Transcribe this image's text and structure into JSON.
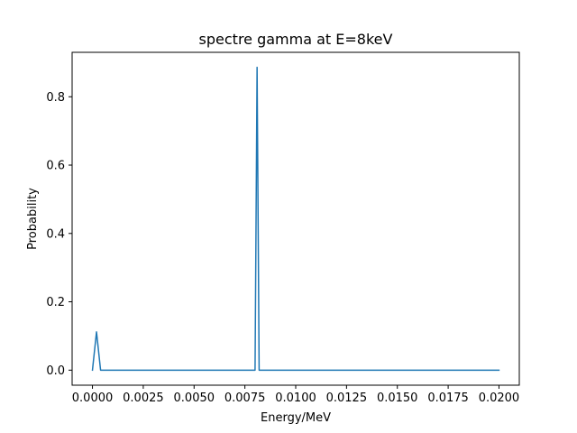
{
  "chart_data": {
    "type": "line",
    "title": "spectre gamma at E=8keV",
    "xlabel": "Energy/MeV",
    "ylabel": "Probability",
    "xlim": [
      -0.001,
      0.021
    ],
    "ylim": [
      -0.044,
      0.93
    ],
    "xticks": [
      0.0,
      0.0025,
      0.005,
      0.0075,
      0.01,
      0.0125,
      0.015,
      0.0175,
      0.02
    ],
    "xtick_labels": [
      "0.0000",
      "0.0025",
      "0.0050",
      "0.0075",
      "0.0100",
      "0.0125",
      "0.0150",
      "0.0175",
      "0.0200"
    ],
    "yticks": [
      0.0,
      0.2,
      0.4,
      0.6,
      0.8
    ],
    "ytick_labels": [
      "0.0",
      "0.2",
      "0.4",
      "0.6",
      "0.8"
    ],
    "grid": false,
    "series": [
      {
        "color": "#1f77b4",
        "x": [
          0.0,
          0.0002,
          0.0004,
          0.0078,
          0.008,
          0.0081,
          0.0082,
          0.02
        ],
        "y": [
          0.0,
          0.112,
          0.0,
          0.0,
          0.0,
          0.886,
          0.0,
          0.0
        ]
      }
    ]
  }
}
